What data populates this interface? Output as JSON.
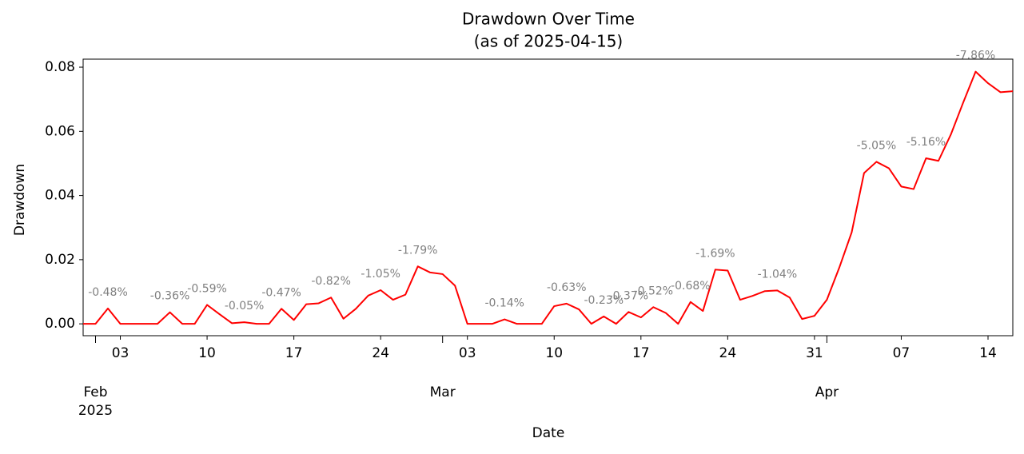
{
  "chart_data": {
    "type": "line",
    "title": "Drawdown Over Time",
    "subtitle": "(as of 2025-04-15)",
    "x_label": "Date",
    "y_label": "Drawdown",
    "x": [
      "2025-01-31",
      "2025-02-01",
      "2025-02-02",
      "2025-02-03",
      "2025-02-04",
      "2025-02-05",
      "2025-02-06",
      "2025-02-07",
      "2025-02-08",
      "2025-02-09",
      "2025-02-10",
      "2025-02-11",
      "2025-02-12",
      "2025-02-13",
      "2025-02-14",
      "2025-02-15",
      "2025-02-16",
      "2025-02-17",
      "2025-02-18",
      "2025-02-19",
      "2025-02-20",
      "2025-02-21",
      "2025-02-22",
      "2025-02-23",
      "2025-02-24",
      "2025-02-25",
      "2025-02-26",
      "2025-02-27",
      "2025-02-28",
      "2025-03-01",
      "2025-03-02",
      "2025-03-03",
      "2025-03-04",
      "2025-03-05",
      "2025-03-06",
      "2025-03-07",
      "2025-03-08",
      "2025-03-09",
      "2025-03-10",
      "2025-03-11",
      "2025-03-12",
      "2025-03-13",
      "2025-03-14",
      "2025-03-15",
      "2025-03-16",
      "2025-03-17",
      "2025-03-18",
      "2025-03-19",
      "2025-03-20",
      "2025-03-21",
      "2025-03-22",
      "2025-03-23",
      "2025-03-24",
      "2025-03-25",
      "2025-03-26",
      "2025-03-27",
      "2025-03-28",
      "2025-03-29",
      "2025-03-30",
      "2025-03-31",
      "2025-04-01",
      "2025-04-02",
      "2025-04-03",
      "2025-04-04",
      "2025-04-05",
      "2025-04-06",
      "2025-04-07",
      "2025-04-08",
      "2025-04-09",
      "2025-04-10",
      "2025-04-11",
      "2025-04-12",
      "2025-04-13",
      "2025-04-14",
      "2025-04-15",
      "2025-04-16"
    ],
    "series": [
      {
        "color": "#ff0000",
        "values": [
          0,
          0,
          0.0048,
          0,
          0,
          0,
          0,
          0.0036,
          0,
          0,
          0.0059,
          0.003,
          0.0002,
          0.0005,
          0,
          0,
          0.0047,
          0.0012,
          0.0061,
          0.0064,
          0.0082,
          0.0016,
          0.0047,
          0.0088,
          0.0105,
          0.0075,
          0.0091,
          0.0179,
          0.016,
          0.0155,
          0.0119,
          0,
          0,
          0,
          0.0014,
          0,
          0,
          0,
          0.0055,
          0.0063,
          0.0045,
          0,
          0.0023,
          0,
          0.0037,
          0.002,
          0.0052,
          0.0034,
          0,
          0.0068,
          0.004,
          0.0169,
          0.0166,
          0.0075,
          0.0087,
          0.0102,
          0.0104,
          0.0082,
          0.0015,
          0.0025,
          0.0075,
          0.0175,
          0.0285,
          0.047,
          0.0505,
          0.0485,
          0.0428,
          0.042,
          0.0516,
          0.0508,
          0.059,
          0.069,
          0.0786,
          0.075,
          0.0722,
          0.0725
        ]
      }
    ],
    "annotations": [
      {
        "x": "2025-02-02",
        "text": "-0.48%"
      },
      {
        "x": "2025-02-07",
        "text": "-0.36%"
      },
      {
        "x": "2025-02-10",
        "text": "-0.59%"
      },
      {
        "x": "2025-02-13",
        "text": "-0.05%"
      },
      {
        "x": "2025-02-16",
        "text": "-0.47%"
      },
      {
        "x": "2025-02-20",
        "text": "-0.82%"
      },
      {
        "x": "2025-02-24",
        "text": "-1.05%"
      },
      {
        "x": "2025-02-27",
        "text": "-1.79%"
      },
      {
        "x": "2025-03-06",
        "text": "-0.14%"
      },
      {
        "x": "2025-03-11",
        "text": "-0.63%"
      },
      {
        "x": "2025-03-14",
        "text": "-0.23%"
      },
      {
        "x": "2025-03-16",
        "text": "-0.37%"
      },
      {
        "x": "2025-03-18",
        "text": "-0.52%"
      },
      {
        "x": "2025-03-21",
        "text": "-0.68%"
      },
      {
        "x": "2025-03-23",
        "text": "-1.69%"
      },
      {
        "x": "2025-03-28",
        "text": "-1.04%"
      },
      {
        "x": "2025-04-05",
        "text": "-5.05%"
      },
      {
        "x": "2025-04-09",
        "text": "-5.16%"
      },
      {
        "x": "2025-04-13",
        "text": "-7.86%"
      }
    ],
    "annotation_color": "#808080",
    "xlim": [
      "2025-01-31",
      "2025-04-16"
    ],
    "xticks": [
      {
        "value": "2025-02-03",
        "label": "03"
      },
      {
        "value": "2025-02-10",
        "label": "10"
      },
      {
        "value": "2025-02-17",
        "label": "17"
      },
      {
        "value": "2025-02-24",
        "label": "24"
      },
      {
        "value": "2025-03-03",
        "label": "03"
      },
      {
        "value": "2025-03-10",
        "label": "10"
      },
      {
        "value": "2025-03-17",
        "label": "17"
      },
      {
        "value": "2025-03-24",
        "label": "24"
      },
      {
        "value": "2025-03-31",
        "label": "31"
      },
      {
        "value": "2025-04-07",
        "label": "07"
      },
      {
        "value": "2025-04-14",
        "label": "14"
      }
    ],
    "x_month_ticks": [
      {
        "value": "2025-02-01",
        "label": "Feb"
      },
      {
        "value": "2025-03-01",
        "label": "Mar"
      },
      {
        "value": "2025-04-01",
        "label": "Apr"
      }
    ],
    "x_year_label": "2025",
    "ylim": [
      -0.0037,
      0.0825
    ],
    "yticks": [
      {
        "value": 0,
        "label": "0.00"
      },
      0.02,
      0.04,
      0.06,
      0.08
    ],
    "grid": false
  }
}
